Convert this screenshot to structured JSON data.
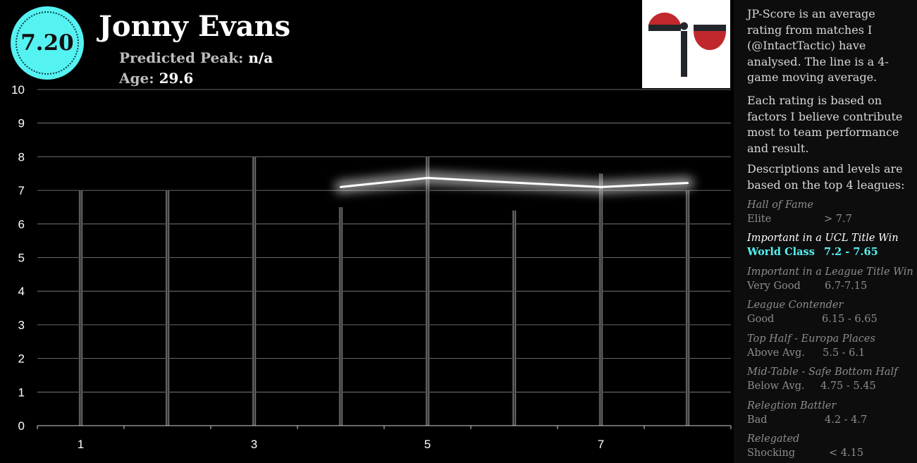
{
  "header": {
    "score": "7.20",
    "player_name": "Jonny Evans",
    "predicted_peak_label": "Predicted Peak:",
    "predicted_peak_value": "n/a",
    "age_label": "Age:",
    "age_value": "29.6"
  },
  "colors": {
    "accent": "#55f2f2",
    "logo_red": "#c0282d",
    "logo_dark": "#22262a",
    "bar": "#6e6e6e"
  },
  "logo": {
    "icon": "jp-logo"
  },
  "sidebar": {
    "intro": "JP-Score is an average rating from matches I (@IntactTactic) have analysed. The line is a 4-game moving average.",
    "basis": "Each rating is based on factors I believe contribute most to team performance and result.",
    "levels_intro": "Descriptions and levels are based on the top 4 leagues:",
    "levels": [
      {
        "description": "Hall of Fame",
        "label": "Elite",
        "range": "> 7.7"
      },
      {
        "description": "Important in a UCL Title Win",
        "label": "World Class",
        "range": "7.2 - 7.65",
        "active": true
      },
      {
        "description": "Important in a League Title Win",
        "label": "Very Good",
        "range": "6.7-7.15"
      },
      {
        "description": "League Contender",
        "label": "Good",
        "range": "6.15 - 6.65"
      },
      {
        "description": "Top Half - Europa Places",
        "label": "Above Avg.",
        "range": "5.5 - 6.1"
      },
      {
        "description": "Mid-Table - Safe Bottom Half",
        "label": "Below Avg.",
        "range": "4.75 - 5.45"
      },
      {
        "description": "Relegtion Battler",
        "label": "Bad",
        "range": "4.2 - 4.7"
      },
      {
        "description": "Relegated",
        "label": "Shocking",
        "range": "< 4.15"
      }
    ]
  },
  "chart_data": {
    "type": "bar",
    "x": [
      1,
      2,
      3,
      4,
      5,
      6,
      7,
      8
    ],
    "x_tick_labels": [
      "1",
      "3",
      "5",
      "7"
    ],
    "ylim": [
      0,
      10
    ],
    "y_ticks": [
      "0",
      "1",
      "2",
      "3",
      "4",
      "5",
      "6",
      "7",
      "8",
      "9",
      "10"
    ],
    "grid": true,
    "series": [
      {
        "type": "bar",
        "values": [
          7.0,
          7.0,
          8.0,
          6.5,
          8.0,
          6.4,
          7.5,
          7.0
        ]
      },
      {
        "type": "line",
        "x": [
          4,
          5,
          6,
          7,
          8
        ],
        "values": [
          7.1,
          7.37,
          7.23,
          7.1,
          7.22
        ]
      }
    ]
  }
}
